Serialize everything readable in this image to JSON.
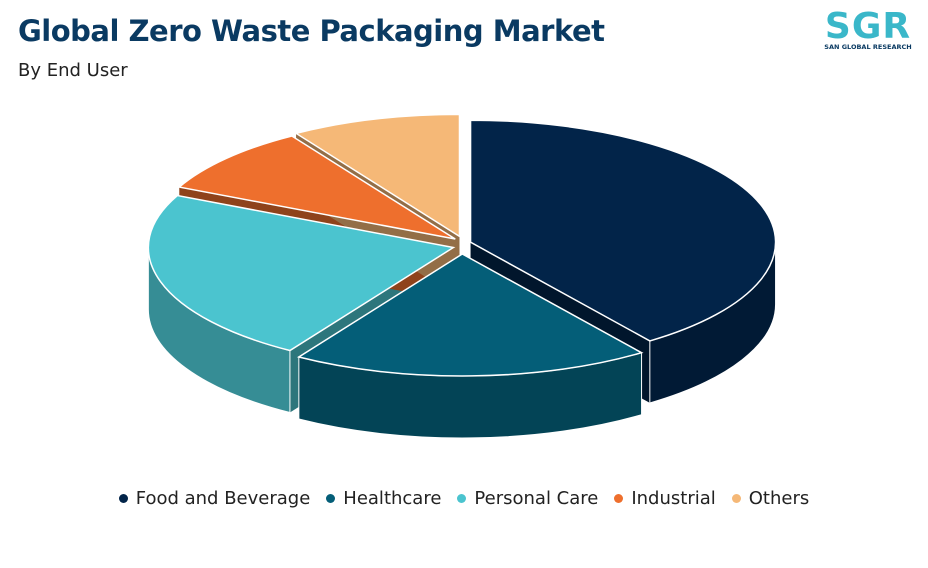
{
  "chart_data": {
    "type": "pie",
    "title": "Global Zero Waste Packaging Market",
    "subtitle": "By End User",
    "categories": [
      "Food and Beverage",
      "Healthcare",
      "Personal Care",
      "Industrial",
      "Others"
    ],
    "values": [
      40,
      19,
      23,
      9,
      9
    ],
    "colors": [
      "#022449",
      "#045e78",
      "#4bc4cf",
      "#ee6f2d",
      "#f5b877"
    ]
  },
  "logo": {
    "mark": "SGR",
    "name": "SAN GLOBAL RESEARCH"
  }
}
